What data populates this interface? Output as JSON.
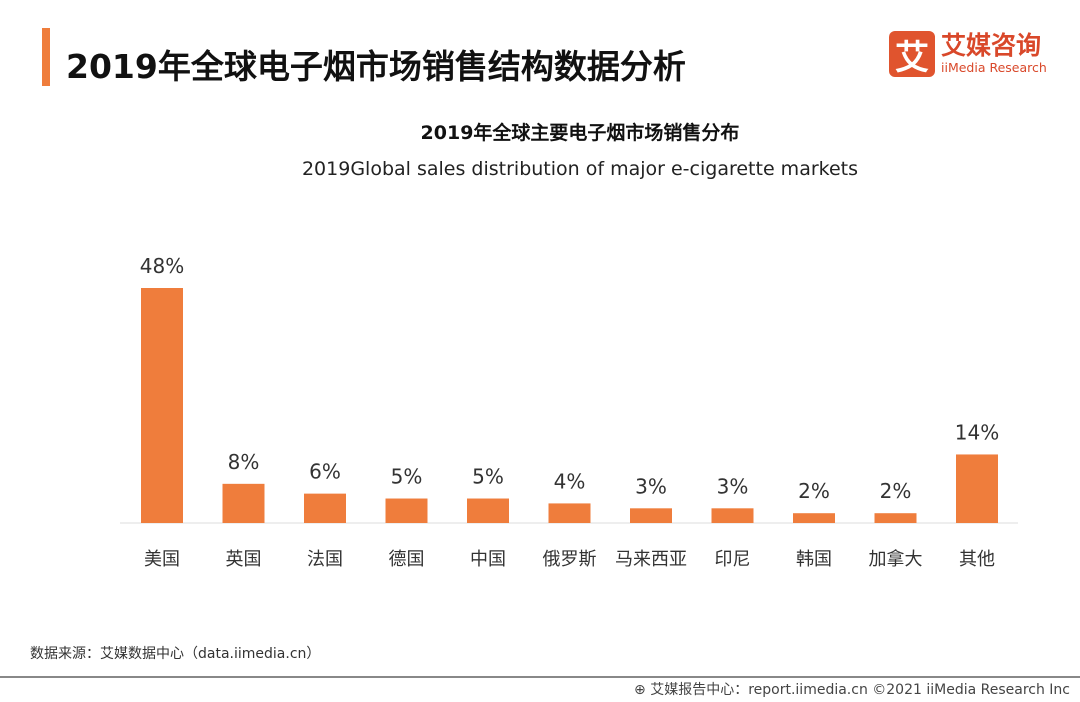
{
  "header": {
    "title": "2019年全球电子烟市场销售结构数据分析",
    "accent_color": "#ef7d3c"
  },
  "logo": {
    "mark": "艾",
    "cn": "艾媒咨询",
    "en": "iiMedia Research",
    "color": "#e0542e"
  },
  "chart_data": {
    "type": "bar",
    "title": "2019年全球主要电子烟市场销售分布",
    "subtitle": "2019Global sales distribution of major e-cigarette markets",
    "categories": [
      "美国",
      "英国",
      "法国",
      "德国",
      "中国",
      "俄罗斯",
      "马来西亚",
      "印尼",
      "韩国",
      "加拿大",
      "其他"
    ],
    "values": [
      48,
      8,
      6,
      5,
      5,
      4,
      3,
      3,
      2,
      2,
      14
    ],
    "data_labels": [
      "48%",
      "8%",
      "6%",
      "5%",
      "5%",
      "4%",
      "3%",
      "3%",
      "2%",
      "2%",
      "14%"
    ],
    "unit": "%",
    "bar_color": "#ef7d3c",
    "grid": false,
    "ylim": [
      0,
      48
    ]
  },
  "source": "数据来源：艾媒数据中心（data.iimedia.cn）",
  "footer": "艾媒报告中心：report.iimedia.cn ©2021 iiMedia Research Inc",
  "footer_icon": "globe-icon"
}
